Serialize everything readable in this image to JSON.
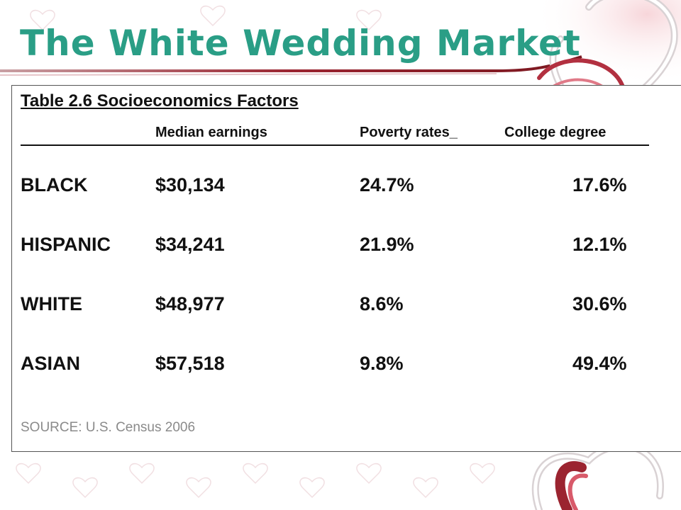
{
  "slide": {
    "title": "The White Wedding Market",
    "colors": {
      "title": "#2a9e86",
      "accent_red": "#9b2430",
      "text": "#111111",
      "source": "#8a8a8a"
    }
  },
  "table": {
    "title": "Table 2.6 Socioeconomics Factors",
    "headers": {
      "earnings": "Median earnings",
      "poverty": "Poverty rates_",
      "college": "College degree"
    },
    "rows": [
      {
        "group": "BLACK",
        "earnings": "$30,134",
        "poverty": "24.7%",
        "college": "17.6%"
      },
      {
        "group": "HISPANIC",
        "earnings": "$34,241",
        "poverty": "21.9%",
        "college": "12.1%"
      },
      {
        "group": "WHITE",
        "earnings": "$48,977",
        "poverty": "8.6%",
        "college": "30.6%"
      },
      {
        "group": "ASIAN",
        "earnings": "$57,518",
        "poverty": "9.8%",
        "college": "49.4%"
      }
    ],
    "source": "SOURCE: U.S. Census 2006"
  }
}
